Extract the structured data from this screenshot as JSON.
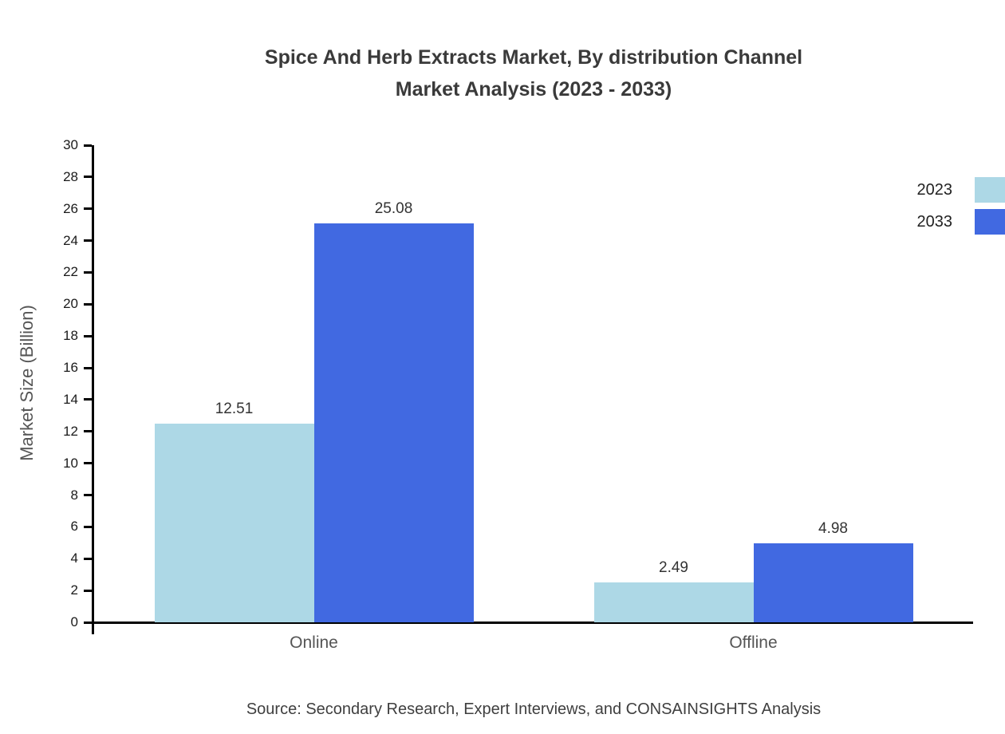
{
  "title": {
    "line1": "Spice And Herb Extracts Market, By distribution Channel",
    "line2": "Market Analysis (2023 - 2033)"
  },
  "source": "Source: Secondary Research, Expert Interviews, and CONSAINSIGHTS Analysis",
  "chart_data": {
    "type": "bar",
    "title": "Spice And Herb Extracts Market, By distribution Channel Market Analysis (2023 - 2033)",
    "categories": [
      "Online",
      "Offline"
    ],
    "series": [
      {
        "name": "2023",
        "color": "#add8e6",
        "values": [
          12.51,
          2.49
        ]
      },
      {
        "name": "2033",
        "color": "#4169e1",
        "values": [
          25.08,
          4.98
        ]
      }
    ],
    "xlabel": "",
    "ylabel": "Market Size (Billion)",
    "ylim": [
      0,
      30
    ],
    "ytick_step": 2,
    "grid": false,
    "legend_position": "top-right"
  }
}
